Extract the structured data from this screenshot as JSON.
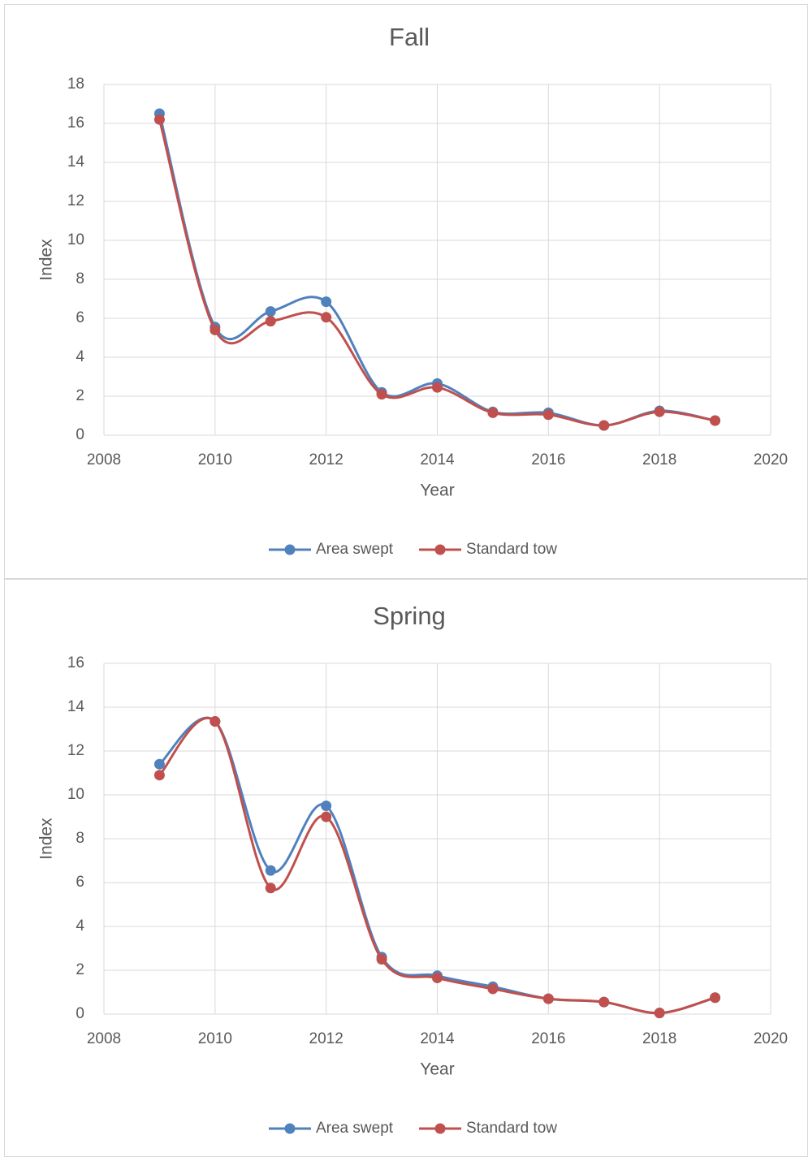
{
  "chart_data": [
    {
      "type": "line",
      "smooth": true,
      "title": "Fall",
      "x_label": "Year",
      "y_label": "Index",
      "x": [
        2009,
        2010,
        2011,
        2012,
        2013,
        2014,
        2015,
        2016,
        2017,
        2018,
        2019
      ],
      "series": [
        {
          "name": "Area swept",
          "color": "#4f81bd",
          "values": [
            16.5,
            5.55,
            6.35,
            6.85,
            2.2,
            2.65,
            1.2,
            1.15,
            0.5,
            1.25,
            0.75
          ]
        },
        {
          "name": "Standard tow",
          "color": "#c0504d",
          "values": [
            16.2,
            5.4,
            5.85,
            6.05,
            2.1,
            2.45,
            1.15,
            1.05,
            0.5,
            1.2,
            0.75
          ]
        }
      ],
      "xlim": [
        2008,
        2020
      ],
      "xticks": [
        2008,
        2010,
        2012,
        2014,
        2016,
        2018,
        2020
      ],
      "ylim": [
        0,
        18
      ],
      "yticks": [
        0,
        2,
        4,
        6,
        8,
        10,
        12,
        14,
        16,
        18
      ],
      "grid": true,
      "legend": "bottom"
    },
    {
      "type": "line",
      "smooth": true,
      "title": "Spring",
      "x_label": "Year",
      "y_label": "Index",
      "x": [
        2009,
        2010,
        2011,
        2012,
        2013,
        2014,
        2015,
        2016,
        2017,
        2018,
        2019
      ],
      "series": [
        {
          "name": "Area swept",
          "color": "#4f81bd",
          "values": [
            11.4,
            13.35,
            6.55,
            9.5,
            2.6,
            1.75,
            1.25,
            0.7,
            0.55,
            0.05,
            0.75
          ]
        },
        {
          "name": "Standard tow",
          "color": "#c0504d",
          "values": [
            10.9,
            13.35,
            5.75,
            9.0,
            2.5,
            1.65,
            1.15,
            0.7,
            0.55,
            0.05,
            0.75
          ]
        }
      ],
      "xlim": [
        2008,
        2020
      ],
      "xticks": [
        2008,
        2010,
        2012,
        2014,
        2016,
        2018,
        2020
      ],
      "ylim": [
        0,
        16
      ],
      "yticks": [
        0,
        2,
        4,
        6,
        8,
        10,
        12,
        14,
        16
      ],
      "grid": true,
      "legend": "bottom"
    }
  ]
}
